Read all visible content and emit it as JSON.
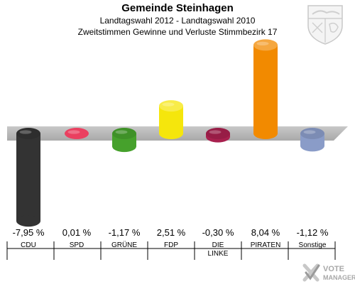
{
  "header": {
    "title": "Gemeinde Steinhagen",
    "subtitle": "Landtagswahl 2012 - Landtagswahl 2010",
    "description": "Zweitstimmen Gewinne und Verluste Stimmbezirk 17"
  },
  "watermark": {
    "line1": "VOTE",
    "line2": "MANAGER",
    "icon": "checkmark-cross-icon"
  },
  "crest": {
    "icon": "nrw-crest-icon"
  },
  "chart_data": {
    "type": "bar",
    "title": "Gemeinde Steinhagen",
    "categories": [
      "CDU",
      "SPD",
      "GRÜNE",
      "FDP",
      "DIE LINKE",
      "PIRATEN",
      "Sonstige"
    ],
    "values": [
      -7.95,
      0.01,
      -1.17,
      2.51,
      -0.3,
      8.04,
      -1.12
    ],
    "value_labels": [
      "-7,95 %",
      "0,01 %",
      "-1,17 %",
      "2,51 %",
      "-0,30 %",
      "8,04 %",
      "-1,12 %"
    ],
    "colors": [
      "#333333",
      "#e3002b",
      "#46a12c",
      "#f5e60c",
      "#a8204e",
      "#f28a00",
      "#8a9cc8"
    ],
    "ylim": [
      -8.5,
      8.5
    ],
    "grid": false
  }
}
